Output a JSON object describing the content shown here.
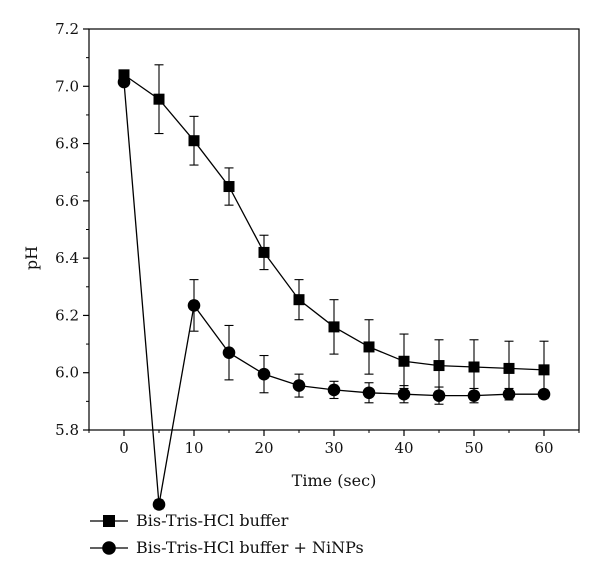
{
  "chart_data": {
    "type": "line",
    "title": "",
    "xlabel": "Time (sec)",
    "ylabel": "pH",
    "xlim": [
      -5,
      65
    ],
    "ylim": [
      5.8,
      7.2
    ],
    "xticks": [
      0,
      10,
      20,
      30,
      40,
      50,
      60
    ],
    "yticks": [
      5.8,
      6.0,
      6.2,
      6.4,
      6.6,
      6.8,
      7.0,
      7.2
    ],
    "ytick_labels": [
      "5.8",
      "6.0",
      "6.2",
      "6.4",
      "6.6",
      "6.8",
      "7.0",
      "7.2"
    ],
    "grid": false,
    "legend_position": "bottom-left",
    "series": [
      {
        "name": "Bis-Tris-HCl buffer",
        "marker": "square",
        "color": "#000000",
        "x": [
          0,
          5,
          10,
          15,
          20,
          25,
          30,
          35,
          40,
          45,
          50,
          55,
          60
        ],
        "y": [
          7.04,
          6.955,
          6.81,
          6.65,
          6.42,
          6.255,
          6.16,
          6.09,
          6.04,
          6.025,
          6.02,
          6.015,
          6.01
        ],
        "error": [
          0.0,
          0.12,
          0.085,
          0.065,
          0.06,
          0.07,
          0.095,
          0.095,
          0.095,
          0.09,
          0.095,
          0.095,
          0.1
        ]
      },
      {
        "name": "Bis-Tris-HCl buffer + NiNPs",
        "marker": "circle",
        "color": "#000000",
        "x": [
          0,
          5,
          10,
          15,
          20,
          25,
          30,
          35,
          40,
          45,
          50,
          55,
          60
        ],
        "y": [
          7.015,
          5.54,
          6.235,
          6.07,
          5.995,
          5.955,
          5.94,
          5.93,
          5.925,
          5.92,
          5.92,
          5.925,
          5.925
        ],
        "error": [
          0.0,
          0.015,
          0.09,
          0.095,
          0.065,
          0.04,
          0.03,
          0.035,
          0.03,
          0.03,
          0.025,
          0.02,
          0.015
        ]
      }
    ]
  }
}
